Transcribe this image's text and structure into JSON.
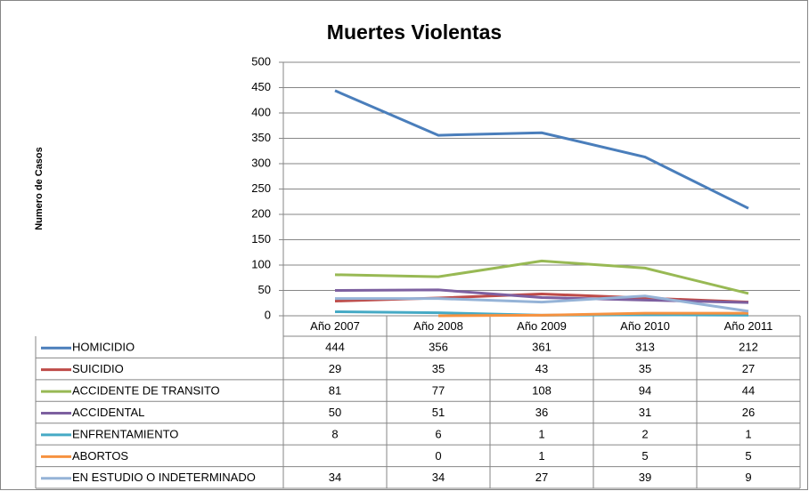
{
  "chart_data": {
    "type": "line",
    "title": "Muertes Violentas",
    "y_label": "Numero de Casos",
    "categories": [
      "Año 2007",
      "Año 2008",
      "Año 2009",
      "Año 2010",
      "Año 2011"
    ],
    "ylim": [
      0,
      500
    ],
    "yticks": [
      0,
      50,
      100,
      150,
      200,
      250,
      300,
      350,
      400,
      450,
      500
    ],
    "grid": true,
    "series": [
      {
        "name": "HOMICIDIO",
        "color": "#4a7ebb",
        "values": [
          444,
          356,
          361,
          313,
          212
        ]
      },
      {
        "name": "SUICIDIO",
        "color": "#be4b48",
        "values": [
          29,
          35,
          43,
          35,
          27
        ]
      },
      {
        "name": "ACCIDENTE DE TRANSITO",
        "color": "#98b954",
        "values": [
          81,
          77,
          108,
          94,
          44
        ]
      },
      {
        "name": "ACCIDENTAL",
        "color": "#7d60a0",
        "values": [
          50,
          51,
          36,
          31,
          26
        ]
      },
      {
        "name": "ENFRENTAMIENTO",
        "color": "#46aac5",
        "values": [
          8,
          6,
          1,
          2,
          1
        ]
      },
      {
        "name": "ABORTOS",
        "color": "#f69240",
        "values": [
          null,
          0,
          1,
          5,
          5
        ]
      },
      {
        "name": "EN ESTUDIO O INDETERMINADO",
        "color": "#95b3d7",
        "values": [
          34,
          34,
          27,
          39,
          9
        ]
      }
    ]
  }
}
